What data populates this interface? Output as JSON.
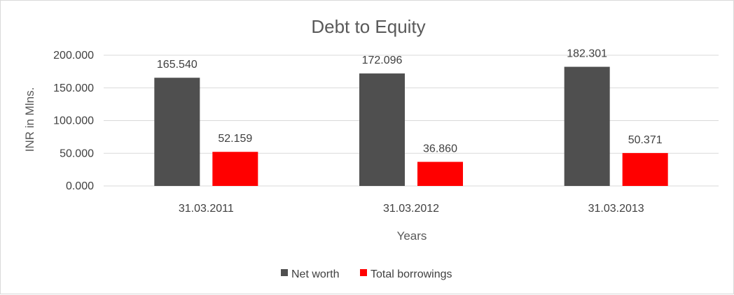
{
  "chart_data": {
    "type": "bar",
    "title": "Debt to Equity",
    "xlabel": "Years",
    "ylabel": "INR in Mlns.",
    "categories": [
      "31.03.2011",
      "31.03.2012",
      "31.03.2013"
    ],
    "series": [
      {
        "name": "Net worth",
        "values": [
          165.54,
          172.096,
          182.301
        ],
        "labels": [
          "165.540",
          "172.096",
          "182.301"
        ],
        "color": "#4f4f4f"
      },
      {
        "name": "Total borrowings",
        "values": [
          52.159,
          36.86,
          50.371
        ],
        "labels": [
          "52.159",
          "36.860",
          "50.371"
        ],
        "color": "#ff0000"
      }
    ],
    "ylim": [
      0,
      200
    ],
    "yticks": [
      "0.000",
      "50.000",
      "100.000",
      "150.000",
      "200.000"
    ],
    "grid": true,
    "legend": "bottom"
  }
}
